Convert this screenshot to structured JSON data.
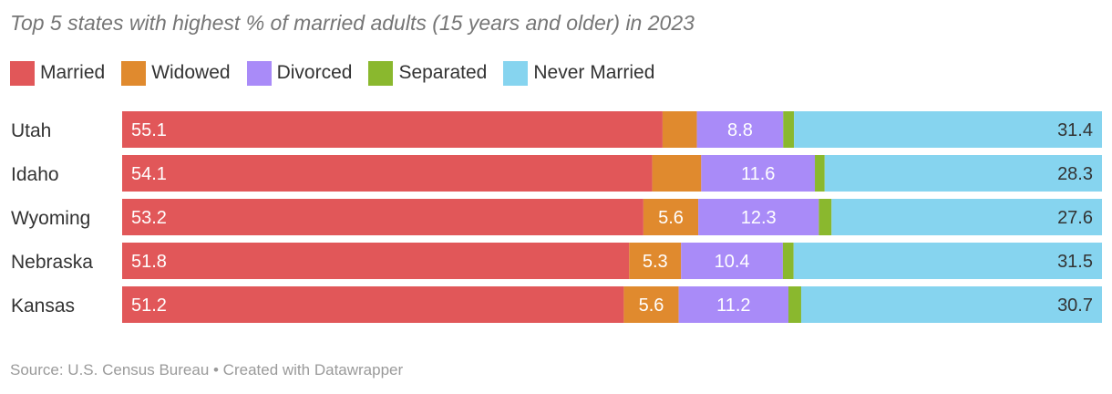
{
  "chart_data": {
    "type": "bar",
    "orientation": "horizontal",
    "stacked": true,
    "title": "Top 5 states with highest % of married adults (15 years and older) in 2023",
    "categories": [
      "Utah",
      "Idaho",
      "Wyoming",
      "Nebraska",
      "Kansas"
    ],
    "series": [
      {
        "name": "Married",
        "color": "#e15759",
        "values": [
          55.1,
          54.1,
          53.2,
          51.8,
          51.2
        ],
        "labels": [
          "55.1",
          "54.1",
          "53.2",
          "51.8",
          "51.2"
        ]
      },
      {
        "name": "Widowed",
        "color": "#e08a2e",
        "values": [
          3.5,
          5.0,
          5.6,
          5.3,
          5.6
        ],
        "labels": [
          "",
          "",
          "5.6",
          "5.3",
          "5.6"
        ]
      },
      {
        "name": "Divorced",
        "color": "#a98bf8",
        "values": [
          8.8,
          11.6,
          12.3,
          10.4,
          11.2
        ],
        "labels": [
          "8.8",
          "11.6",
          "12.3",
          "10.4",
          "11.2"
        ]
      },
      {
        "name": "Separated",
        "color": "#8ab82e",
        "values": [
          1.1,
          1.0,
          1.3,
          1.1,
          1.3
        ],
        "labels": [
          "",
          "",
          "",
          "",
          ""
        ]
      },
      {
        "name": "Never Married",
        "color": "#86d4ef",
        "values": [
          31.4,
          28.3,
          27.6,
          31.5,
          30.7
        ],
        "labels": [
          "31.4",
          "28.3",
          "27.6",
          "31.5",
          "30.7"
        ]
      }
    ],
    "xlim": [
      0,
      100
    ],
    "source": "Source: U.S. Census Bureau • Created with Datawrapper"
  }
}
